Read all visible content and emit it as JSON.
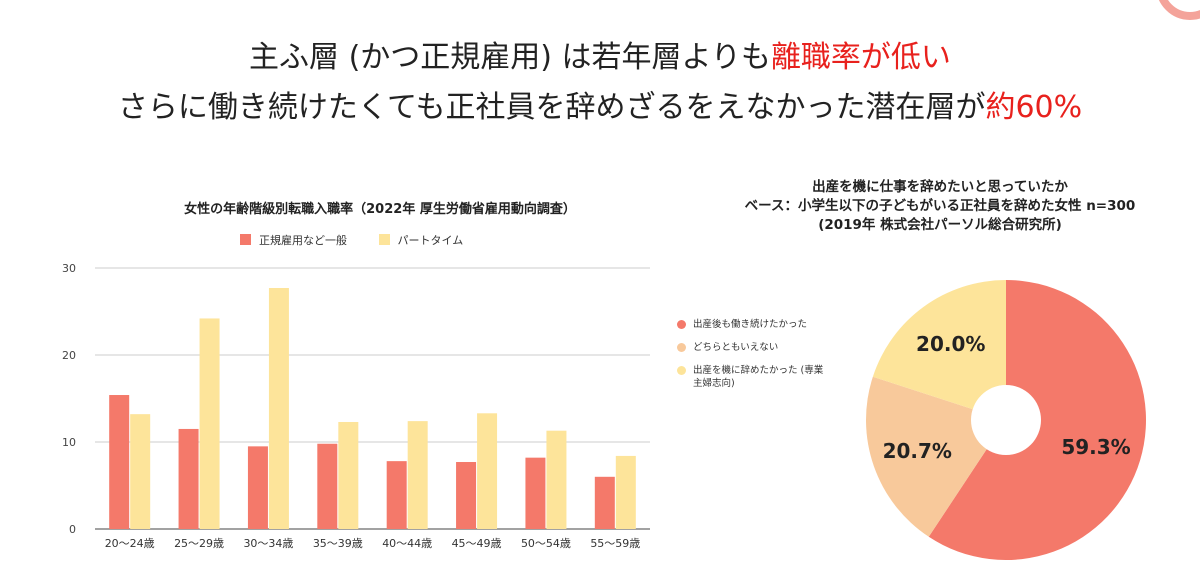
{
  "headline": {
    "line1_prefix": "主ふ層 (かつ正規雇用) は若年層よりも",
    "line1_highlight": "離職率が低い",
    "line2_prefix": "さらに働き続けたくても正社員を辞めざるをえなかった潜在層が",
    "line2_highlight": "約60%"
  },
  "colors": {
    "highlight": "#e8211d",
    "regular": "#f4796a",
    "parttime": "#fde49a",
    "neutral": "#f8c99b"
  },
  "chart_data": [
    {
      "type": "bar",
      "title": "女性の年齢階級別転職入職率（2022年 厚生労働省雇用動向調査）",
      "categories": [
        "20～24歳",
        "25～29歳",
        "30～34歳",
        "35～39歳",
        "40～44歳",
        "45～49歳",
        "50～54歳",
        "55～59歳"
      ],
      "series": [
        {
          "name": "正規雇用など一般",
          "values": [
            15.4,
            11.5,
            9.5,
            9.8,
            7.8,
            7.7,
            8.2,
            6.0
          ],
          "color": "#f4796a"
        },
        {
          "name": "パートタイム",
          "values": [
            13.2,
            24.2,
            27.7,
            12.3,
            12.4,
            13.3,
            11.3,
            8.4
          ],
          "color": "#fde49a"
        }
      ],
      "yticks": [
        0,
        10,
        20,
        30
      ],
      "ylim": [
        0,
        30
      ],
      "grid": true,
      "legend": "top"
    },
    {
      "type": "pie",
      "title_lines": [
        "出産を機に仕事を辞めたいと思っていたか",
        "ベース：小学生以下の子どもがいる正社員を辞めた女性 n=300",
        "(2019年 株式会社パーソル総合研究所)"
      ],
      "slices": [
        {
          "label": "出産後も働き続けたかった",
          "value": 59.3,
          "display": "59.3%",
          "color": "#f4796a"
        },
        {
          "label": "どちらともいえない",
          "value": 20.7,
          "display": "20.7%",
          "color": "#f8c99b"
        },
        {
          "label": "出産を機に辞めたかった (専業主婦志向)",
          "value": 20.0,
          "display": "20.0%",
          "color": "#fde49a"
        }
      ],
      "legend": "left",
      "donut": true
    }
  ]
}
